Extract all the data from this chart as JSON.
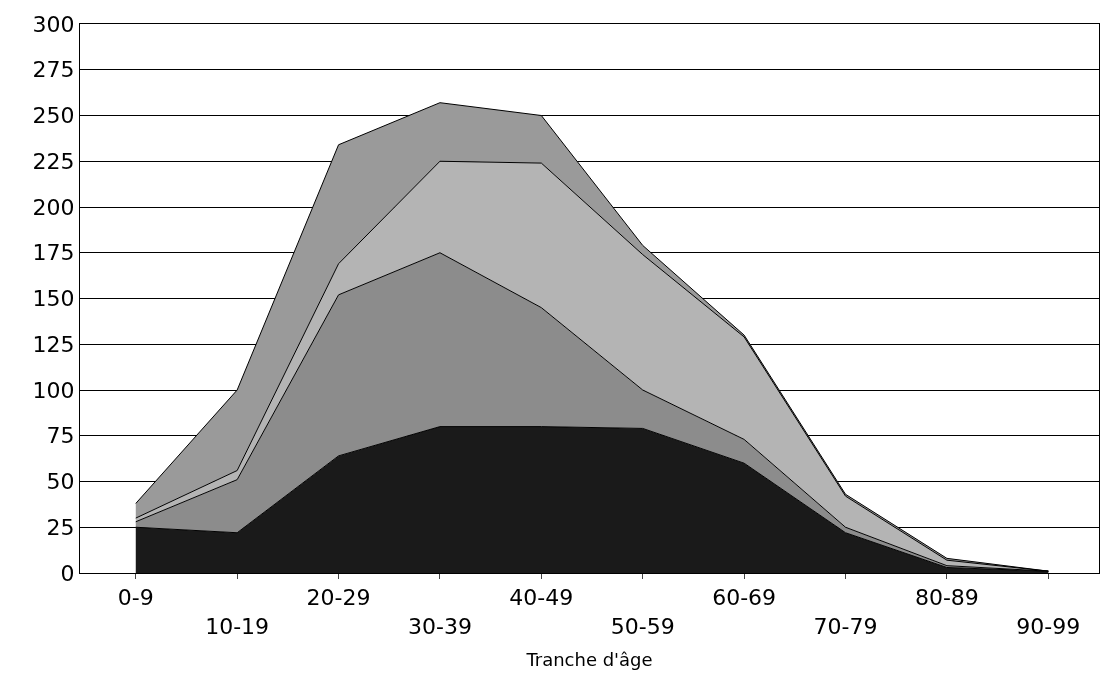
{
  "chart_data": {
    "type": "area",
    "stacked": true,
    "xlabel": "Tranche d'âge",
    "categories": [
      "0-9",
      "10-19",
      "20-29",
      "30-39",
      "40-49",
      "50-59",
      "60-69",
      "70-79",
      "80-89",
      "90-99"
    ],
    "series": [
      {
        "color": "#1a1a1a",
        "values": [
          25,
          22,
          64,
          80,
          80,
          79,
          60,
          22,
          3,
          1
        ]
      },
      {
        "color": "#8c8c8c",
        "values": [
          3,
          29,
          88,
          95,
          65,
          21,
          13,
          3,
          1,
          0
        ]
      },
      {
        "color": "#b4b4b4",
        "values": [
          2,
          5,
          17,
          50,
          79,
          74,
          56,
          17,
          3,
          0
        ]
      },
      {
        "color": "#9a9a9a",
        "values": [
          8,
          44,
          65,
          32,
          26,
          5,
          1,
          1,
          1,
          0
        ]
      }
    ],
    "ylim": [
      0,
      300
    ],
    "yticks": [
      0,
      25,
      50,
      75,
      100,
      125,
      150,
      175,
      200,
      225,
      250,
      275,
      300
    ],
    "grid": "y"
  }
}
